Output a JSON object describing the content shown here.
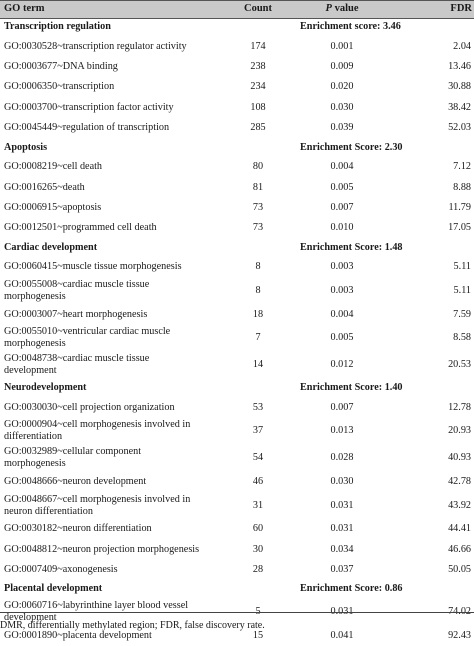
{
  "headers": {
    "term": "GO term",
    "count": "Count",
    "p_prefix": "P",
    "p_suffix": " value",
    "fdr": "FDR"
  },
  "sections": [
    {
      "title": "Transcription regulation",
      "enrichment": "Enrichment score: 3.46",
      "rows": [
        {
          "term": [
            "GO:0030528~transcription regulator activity"
          ],
          "count": "174",
          "p": "0.001",
          "fdr": "2.04"
        },
        {
          "term": [
            "GO:0003677~DNA binding"
          ],
          "count": "238",
          "p": "0.009",
          "fdr": "13.46"
        },
        {
          "term": [
            "GO:0006350~transcription"
          ],
          "count": "234",
          "p": "0.020",
          "fdr": "30.88"
        },
        {
          "term": [
            "GO:0003700~transcription factor activity"
          ],
          "count": "108",
          "p": "0.030",
          "fdr": "38.42"
        },
        {
          "term": [
            "GO:0045449~regulation of transcription"
          ],
          "count": "285",
          "p": "0.039",
          "fdr": "52.03"
        }
      ]
    },
    {
      "title": "Apoptosis",
      "enrichment": "Enrichment Score: 2.30",
      "rows": [
        {
          "term": [
            "GO:0008219~cell death"
          ],
          "count": "80",
          "p": "0.004",
          "fdr": "7.12"
        },
        {
          "term": [
            "GO:0016265~death"
          ],
          "count": "81",
          "p": "0.005",
          "fdr": "8.88"
        },
        {
          "term": [
            "GO:0006915~apoptosis"
          ],
          "count": "73",
          "p": "0.007",
          "fdr": "11.79"
        },
        {
          "term": [
            "GO:0012501~programmed cell death"
          ],
          "count": "73",
          "p": "0.010",
          "fdr": "17.05"
        }
      ]
    },
    {
      "title": "Cardiac development",
      "enrichment": "Enrichment Score: 1.48",
      "rows": [
        {
          "term": [
            "GO:0060415~muscle tissue morphogenesis"
          ],
          "count": "8",
          "p": "0.003",
          "fdr": "5.11"
        },
        {
          "term": [
            "GO:0055008~cardiac muscle tissue",
            "morphogenesis"
          ],
          "count": "8",
          "p": "0.003",
          "fdr": "5.11"
        },
        {
          "term": [
            "GO:0003007~heart morphogenesis"
          ],
          "count": "18",
          "p": "0.004",
          "fdr": "7.59"
        },
        {
          "term": [
            "GO:0055010~ventricular cardiac muscle",
            "morphogenesis"
          ],
          "count": "7",
          "p": "0.005",
          "fdr": "8.58"
        },
        {
          "term": [
            "GO:0048738~cardiac muscle tissue",
            "development"
          ],
          "count": "14",
          "p": "0.012",
          "fdr": "20.53"
        }
      ]
    },
    {
      "title": "Neurodevelopment",
      "enrichment": "Enrichment Score: 1.40",
      "rows": [
        {
          "term": [
            "GO:0030030~cell projection organization"
          ],
          "count": "53",
          "p": "0.007",
          "fdr": "12.78"
        },
        {
          "term": [
            "GO:0000904~cell morphogenesis involved in",
            "differentiation"
          ],
          "count": "37",
          "p": "0.013",
          "fdr": "20.93"
        },
        {
          "term": [
            "GO:0032989~cellular component",
            "morphogenesis"
          ],
          "count": "54",
          "p": "0.028",
          "fdr": "40.93"
        },
        {
          "term": [
            "GO:0048666~neuron development"
          ],
          "count": "46",
          "p": "0.030",
          "fdr": "42.78"
        },
        {
          "term": [
            "GO:0048667~cell morphogenesis involved in",
            "neuron differentiation"
          ],
          "count": "31",
          "p": "0.031",
          "fdr": "43.92"
        },
        {
          "term": [
            "GO:0030182~neuron differentiation"
          ],
          "count": "60",
          "p": "0.031",
          "fdr": "44.41"
        },
        {
          "term": [
            "GO:0048812~neuron projection morphogenesis"
          ],
          "count": "30",
          "p": "0.034",
          "fdr": "46.66"
        },
        {
          "term": [
            "GO:0007409~axonogenesis"
          ],
          "count": "28",
          "p": "0.037",
          "fdr": "50.05"
        }
      ]
    },
    {
      "title": "Placental development",
      "enrichment": "Enrichment Score: 0.86",
      "rows": [
        {
          "term": [
            "GO:0060716~labyrinthine layer blood vessel",
            "development"
          ],
          "count": "5",
          "p": "0.031",
          "fdr": "74.02"
        },
        {
          "term": [
            "GO:0001890~placenta development"
          ],
          "count": "15",
          "p": "0.041",
          "fdr": "92.43"
        }
      ]
    }
  ],
  "footnote": "DMR, differentially methylated region; FDR, false discovery rate."
}
